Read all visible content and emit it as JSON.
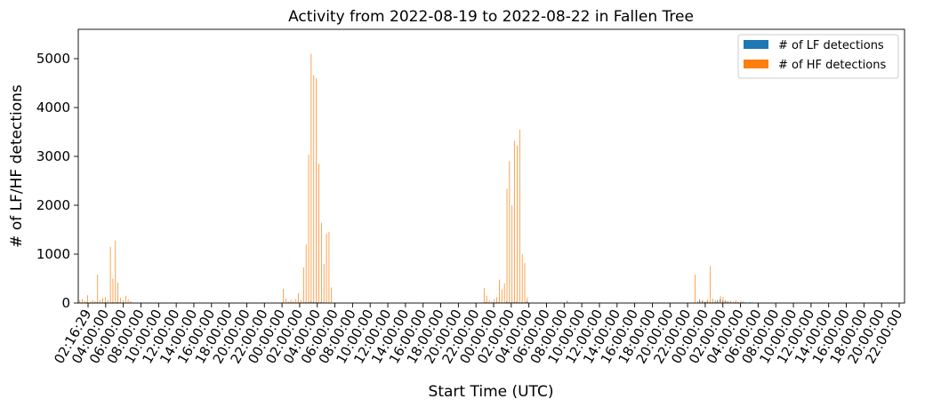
{
  "chart_data": {
    "type": "bar",
    "title": "Activity from 2022-08-19 to 2022-08-22 in Fallen Tree",
    "xlabel": "Start Time (UTC)",
    "ylabel": "# of LF/HF detections",
    "ylim": [
      0,
      5600
    ],
    "yticks": [
      0,
      1000,
      2000,
      3000,
      4000,
      5000
    ],
    "grid": false,
    "legend_position": "top-right",
    "colors": {
      "lf": "#1f77b4",
      "hf": "#ff7f0e"
    },
    "xtick_labels": [
      "02:16:29",
      "04:00:00",
      "06:00:00",
      "08:00:00",
      "10:00:00",
      "12:00:00",
      "14:00:00",
      "16:00:00",
      "18:00:00",
      "20:00:00",
      "22:00:00",
      "00:00:00",
      "02:00:00",
      "04:00:00",
      "06:00:00",
      "08:00:00",
      "10:00:00",
      "12:00:00",
      "14:00:00",
      "16:00:00",
      "18:00:00",
      "20:00:00",
      "22:00:00",
      "00:00:00",
      "02:00:00",
      "04:00:00",
      "06:00:00",
      "08:00:00",
      "10:00:00",
      "12:00:00",
      "14:00:00",
      "16:00:00",
      "18:00:00",
      "20:00:00",
      "22:00:00",
      "00:00:00",
      "02:00:00",
      "04:00:00",
      "06:00:00",
      "08:00:00",
      "10:00:00",
      "12:00:00",
      "14:00:00",
      "16:00:00",
      "18:00:00",
      "20:00:00",
      "22:00:00"
    ],
    "series": [
      {
        "name": "# of LF detections",
        "color": "#1f77b4",
        "values": [
          5,
          10,
          5,
          15,
          5,
          10,
          5,
          20,
          10,
          5,
          15,
          10,
          5,
          15,
          10,
          20,
          5,
          0,
          0,
          0,
          0,
          0,
          0,
          0,
          0,
          0,
          0,
          0,
          0,
          0,
          0,
          0,
          0,
          0,
          0,
          0,
          0,
          0,
          0,
          0,
          0,
          0,
          0,
          0,
          0,
          0,
          0,
          0,
          0,
          0,
          0,
          0,
          0,
          0,
          0,
          0,
          0,
          0,
          0,
          0,
          0,
          0,
          0,
          0,
          0,
          0,
          0,
          0,
          0,
          0,
          0,
          0,
          0,
          0,
          0,
          0,
          0,
          0,
          0,
          0,
          0,
          5,
          10,
          5,
          10,
          5,
          15,
          5,
          10,
          20,
          15,
          30,
          25,
          20,
          15,
          20,
          10,
          5,
          5,
          0,
          0,
          0,
          0,
          0,
          0,
          0,
          0,
          0,
          0,
          0,
          0,
          0,
          0,
          0,
          0,
          0,
          0,
          0,
          0,
          0,
          0,
          0,
          0,
          0,
          0,
          0,
          0,
          0,
          0,
          0,
          0,
          0,
          0,
          0,
          0,
          0,
          0,
          0,
          0,
          0,
          0,
          0,
          0,
          0,
          0,
          0,
          0,
          0,
          0,
          0,
          0,
          0,
          0,
          0,
          0,
          0,
          0,
          0,
          0,
          10,
          20,
          10,
          5,
          10,
          15,
          20,
          10,
          5,
          30,
          20,
          10,
          25,
          30,
          15,
          20,
          10,
          30,
          10,
          5,
          0,
          0,
          0,
          0,
          0,
          0,
          0,
          0,
          0,
          0,
          0,
          0,
          0,
          50,
          0,
          0,
          0,
          0,
          0,
          0,
          0,
          0,
          0,
          0,
          0,
          0,
          0,
          0,
          0,
          0,
          0,
          0,
          0,
          0,
          0,
          0,
          0,
          0,
          0,
          0,
          0,
          0,
          0,
          0,
          0,
          0,
          0,
          0,
          0,
          0,
          0,
          0,
          0,
          0,
          0,
          0,
          0,
          0,
          0,
          0,
          0,
          0,
          0,
          0,
          0,
          80,
          40,
          20,
          30,
          20,
          15,
          20,
          60,
          80,
          50,
          40,
          30,
          20,
          10,
          15,
          20,
          10,
          30,
          20,
          10,
          20,
          10,
          5,
          0,
          0,
          0,
          0,
          0,
          0,
          0,
          0,
          0,
          0,
          0,
          0,
          0,
          0,
          0,
          0,
          0,
          0,
          0,
          0,
          0,
          0,
          0,
          0,
          0,
          0,
          0,
          0,
          0,
          0,
          0,
          0,
          0,
          0,
          0,
          0,
          0,
          0,
          0,
          0,
          0,
          0,
          0,
          0,
          0,
          0,
          0,
          0,
          0,
          0,
          0,
          0,
          0,
          0,
          0,
          0,
          0,
          0
        ]
      },
      {
        "name": "# of HF detections",
        "color": "#ff7f0e",
        "values": [
          60,
          80,
          40,
          160,
          30,
          60,
          40,
          580,
          60,
          100,
          120,
          60,
          1150,
          500,
          1280,
          420,
          110,
          60,
          150,
          80,
          40,
          0,
          0,
          0,
          0,
          0,
          0,
          0,
          0,
          0,
          0,
          0,
          0,
          0,
          0,
          0,
          0,
          0,
          0,
          0,
          0,
          0,
          0,
          0,
          0,
          0,
          0,
          0,
          0,
          0,
          0,
          0,
          0,
          0,
          0,
          0,
          0,
          0,
          0,
          0,
          0,
          0,
          0,
          0,
          0,
          0,
          0,
          0,
          0,
          0,
          0,
          0,
          0,
          0,
          0,
          0,
          0,
          0,
          0,
          0,
          290,
          100,
          30,
          60,
          40,
          80,
          200,
          60,
          730,
          1200,
          3040,
          5100,
          4660,
          4600,
          2850,
          1640,
          800,
          1420,
          1450,
          320,
          0,
          0,
          0,
          0,
          0,
          0,
          0,
          0,
          0,
          0,
          0,
          0,
          0,
          0,
          0,
          0,
          0,
          0,
          0,
          0,
          0,
          0,
          0,
          0,
          0,
          0,
          0,
          0,
          0,
          0,
          0,
          0,
          0,
          0,
          0,
          0,
          0,
          0,
          0,
          0,
          0,
          0,
          0,
          0,
          0,
          0,
          0,
          0,
          0,
          0,
          0,
          0,
          0,
          0,
          0,
          0,
          0,
          0,
          0,
          310,
          150,
          50,
          30,
          80,
          120,
          480,
          280,
          400,
          2340,
          2900,
          2000,
          3320,
          3220,
          3550,
          1000,
          820,
          110,
          0,
          0,
          0,
          0,
          0,
          0,
          0,
          0,
          0,
          0,
          0,
          0,
          0,
          0,
          0,
          0,
          0,
          0,
          0,
          0,
          0,
          0,
          0,
          0,
          0,
          0,
          0,
          0,
          0,
          0,
          0,
          0,
          0,
          0,
          0,
          0,
          0,
          0,
          0,
          0,
          0,
          0,
          0,
          0,
          0,
          0,
          0,
          0,
          0,
          0,
          0,
          0,
          0,
          0,
          0,
          0,
          0,
          0,
          0,
          0,
          0,
          0,
          0,
          0,
          0,
          580,
          40,
          30,
          60,
          40,
          80,
          760,
          90,
          60,
          30,
          140,
          120,
          60,
          40,
          50,
          30,
          60,
          20,
          40,
          10,
          5,
          0,
          0,
          0,
          0,
          0,
          0,
          0,
          0,
          0,
          0,
          0,
          0,
          0,
          0,
          0,
          0,
          0,
          0,
          0,
          0,
          0,
          0,
          0,
          0,
          0,
          0,
          0,
          0,
          0,
          0,
          0,
          0,
          0,
          0,
          0,
          0,
          0,
          0,
          0,
          0,
          0,
          0,
          0,
          0,
          0,
          0,
          0,
          0,
          0,
          0,
          0,
          0,
          0,
          0,
          0,
          0,
          0,
          0,
          0,
          0,
          0
        ]
      }
    ]
  }
}
